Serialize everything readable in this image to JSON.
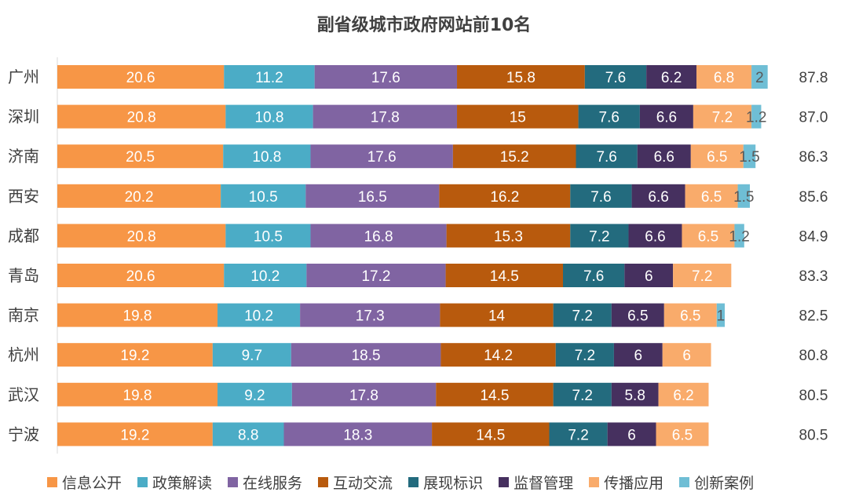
{
  "chart_data": {
    "type": "bar",
    "orientation": "horizontal",
    "stacked": true,
    "title": "副省级城市政府网站前10名",
    "categories": [
      "广州",
      "深圳",
      "济南",
      "西安",
      "成都",
      "青岛",
      "南京",
      "杭州",
      "武汉",
      "宁波"
    ],
    "totals": [
      "87.8",
      "87.0",
      "86.3",
      "85.6",
      "84.9",
      "83.3",
      "82.5",
      "80.8",
      "80.5",
      "80.5"
    ],
    "series": [
      {
        "name": "信息公开",
        "color": "#F79646",
        "values": [
          20.6,
          20.8,
          20.5,
          20.2,
          20.8,
          20.6,
          19.8,
          19.2,
          19.8,
          19.2
        ]
      },
      {
        "name": "政策解读",
        "color": "#4BACC6",
        "values": [
          11.2,
          10.8,
          10.8,
          10.5,
          10.5,
          10.2,
          10.2,
          9.7,
          9.2,
          8.8
        ]
      },
      {
        "name": "在线服务",
        "color": "#8064A2",
        "values": [
          17.6,
          17.8,
          17.6,
          16.5,
          16.8,
          17.2,
          17.3,
          18.5,
          17.8,
          18.3
        ]
      },
      {
        "name": "互动交流",
        "color": "#B85A0D",
        "values": [
          15.8,
          15,
          15.2,
          16.2,
          15.3,
          14.5,
          14,
          14.2,
          14.5,
          14.5
        ]
      },
      {
        "name": "展现标识",
        "color": "#236B7E",
        "values": [
          7.6,
          7.6,
          7.6,
          7.6,
          7.2,
          7.6,
          7.2,
          7.2,
          7.2,
          7.2
        ]
      },
      {
        "name": "监督管理",
        "color": "#46305F",
        "values": [
          6.2,
          6.6,
          6.6,
          6.6,
          6.6,
          6,
          6.5,
          6,
          5.8,
          6
        ]
      },
      {
        "name": "传播应用",
        "color": "#F9AB6B",
        "values": [
          6.8,
          7.2,
          6.5,
          6.5,
          6.5,
          7.2,
          6.5,
          6,
          6.2,
          6.5
        ]
      },
      {
        "name": "创新案例",
        "color": "#6FBED5",
        "values": [
          2,
          1.2,
          1.5,
          1.5,
          1.2,
          null,
          1,
          null,
          null,
          null
        ]
      }
    ],
    "xlim": [
      0,
      88.8
    ],
    "grid": false,
    "legend_position": "bottom",
    "label_color": "#ffffff",
    "small_label_color": "#595959",
    "text_color": "#404040"
  }
}
